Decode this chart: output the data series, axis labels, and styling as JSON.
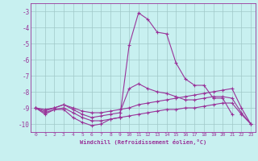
{
  "x_range": [
    -0.5,
    23.5
  ],
  "y_range": [
    -10.5,
    -2.5
  ],
  "xlabel": "Windchill (Refroidissement éolien,°C)",
  "bg_color": "#c8f0f0",
  "grid_color": "#a0c8c8",
  "line_color": "#993399",
  "lines": [
    {
      "x": [
        0,
        1,
        2,
        3,
        4,
        5,
        6,
        7,
        8,
        9,
        10,
        11,
        12,
        13,
        14,
        15,
        16,
        17,
        18,
        19,
        20,
        21
      ],
      "y": [
        -9.0,
        -9.4,
        -9.1,
        -9.1,
        -9.6,
        -9.9,
        -10.1,
        -10.0,
        -9.7,
        -9.6,
        -5.1,
        -3.1,
        -3.5,
        -4.3,
        -4.4,
        -6.2,
        -7.2,
        -7.6,
        -7.6,
        -8.4,
        -8.4,
        -9.4
      ]
    },
    {
      "x": [
        0,
        1,
        2,
        3,
        4,
        5,
        6,
        7,
        8,
        9,
        10,
        11,
        12,
        13,
        14,
        15,
        16,
        17,
        18,
        19,
        20,
        21,
        22,
        23
      ],
      "y": [
        -9.0,
        -9.1,
        -9.0,
        -8.8,
        -9.1,
        -9.4,
        -9.6,
        -9.5,
        -9.4,
        -9.3,
        -7.8,
        -7.5,
        -7.8,
        -8.0,
        -8.1,
        -8.3,
        -8.5,
        -8.5,
        -8.4,
        -8.3,
        -8.3,
        -8.4,
        -9.3,
        -10.0
      ]
    },
    {
      "x": [
        0,
        1,
        2,
        3,
        4,
        5,
        6,
        7,
        8,
        9,
        10,
        11,
        12,
        13,
        14,
        15,
        16,
        17,
        18,
        19,
        20,
        21,
        22,
        23
      ],
      "y": [
        -9.0,
        -9.2,
        -9.0,
        -8.8,
        -9.0,
        -9.2,
        -9.3,
        -9.3,
        -9.2,
        -9.1,
        -9.0,
        -8.8,
        -8.7,
        -8.6,
        -8.5,
        -8.4,
        -8.3,
        -8.2,
        -8.1,
        -8.0,
        -7.9,
        -7.8,
        -9.0,
        -10.0
      ]
    },
    {
      "x": [
        0,
        1,
        2,
        3,
        4,
        5,
        6,
        7,
        8,
        9,
        10,
        11,
        12,
        13,
        14,
        15,
        16,
        17,
        18,
        19,
        20,
        21,
        22,
        23
      ],
      "y": [
        -9.0,
        -9.3,
        -9.1,
        -9.0,
        -9.3,
        -9.6,
        -9.8,
        -9.8,
        -9.7,
        -9.6,
        -9.5,
        -9.4,
        -9.3,
        -9.2,
        -9.1,
        -9.1,
        -9.0,
        -9.0,
        -8.9,
        -8.8,
        -8.7,
        -8.7,
        -9.4,
        -10.0
      ]
    }
  ]
}
